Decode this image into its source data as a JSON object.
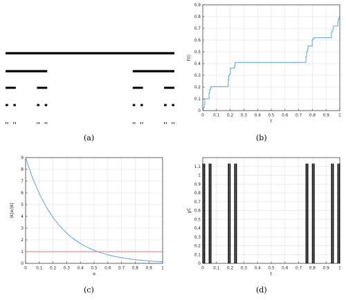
{
  "captions": {
    "a": "(a)",
    "b": "(b)",
    "c": "(c)",
    "d": "(d)"
  },
  "colors": {
    "axis": "#262626",
    "grid": "#e4e4e4",
    "curve": "#5aa4dc",
    "ref": "#e8776e",
    "bars": "#000000",
    "cantor": "#000000"
  },
  "chart_data": [
    {
      "panel": "a",
      "type": "other",
      "description_levels": [
        [
          [
            0,
            1
          ]
        ],
        [
          [
            0,
            0.2469
          ],
          [
            0.7531,
            1
          ]
        ],
        [
          [
            0,
            0.061
          ],
          [
            0.186,
            0.2469
          ],
          [
            0.7531,
            0.814
          ],
          [
            0.939,
            1
          ]
        ],
        [
          [
            0,
            0.015
          ],
          [
            0.046,
            0.061
          ],
          [
            0.186,
            0.201
          ],
          [
            0.232,
            0.2469
          ],
          [
            0.7531,
            0.768
          ],
          [
            0.799,
            0.814
          ],
          [
            0.939,
            0.954
          ],
          [
            0.985,
            1
          ]
        ],
        [
          [
            0,
            0.004
          ],
          [
            0.011,
            0.015
          ],
          [
            0.046,
            0.05
          ],
          [
            0.057,
            0.061
          ],
          [
            0.186,
            0.19
          ],
          [
            0.197,
            0.201
          ],
          [
            0.232,
            0.236
          ],
          [
            0.243,
            0.2469
          ],
          [
            0.7531,
            0.757
          ],
          [
            0.764,
            0.768
          ],
          [
            0.799,
            0.803
          ],
          [
            0.81,
            0.814
          ],
          [
            0.939,
            0.943
          ],
          [
            0.95,
            0.954
          ],
          [
            0.985,
            0.989
          ],
          [
            0.996,
            1
          ]
        ]
      ]
    },
    {
      "panel": "b",
      "type": "line",
      "xlabel": "t",
      "ylabel": "f(t)",
      "xlim": [
        0,
        1
      ],
      "ylim": [
        0,
        0.9
      ],
      "xticks": [
        "0",
        "0.1",
        "0.2",
        "0.3",
        "0.4",
        "0.5",
        "0.6",
        "0.7",
        "0.8",
        "0.9",
        "1"
      ],
      "yticks": [
        "0",
        "0.1",
        "0.2",
        "0.3",
        "0.4",
        "0.5",
        "0.6",
        "0.7",
        "0.8",
        "0.9"
      ],
      "series": [
        {
          "x": [
            0,
            0.004,
            0.004,
            0.011,
            0.011,
            0.015,
            0.015,
            0.046,
            0.046,
            0.05,
            0.05,
            0.057,
            0.057,
            0.061,
            0.061,
            0.186,
            0.186,
            0.19,
            0.19,
            0.197,
            0.197,
            0.201,
            0.201,
            0.232,
            0.232,
            0.236,
            0.236,
            0.243,
            0.243,
            0.247,
            0.247,
            0.753,
            0.753,
            0.757,
            0.757,
            0.764,
            0.764,
            0.768,
            0.768,
            0.799,
            0.799,
            0.803,
            0.803,
            0.81,
            0.81,
            0.814,
            0.814,
            0.939,
            0.939,
            0.943,
            0.943,
            0.95,
            0.95,
            0.954,
            0.954,
            0.985,
            0.985,
            0.989,
            0.989,
            0.996,
            0.996,
            1.0
          ],
          "y": [
            0,
            0.0,
            0.025,
            0.025,
            0.05,
            0.05,
            0.1,
            0.1,
            0.15,
            0.15,
            0.18,
            0.18,
            0.2,
            0.2,
            0.205,
            0.205,
            0.26,
            0.26,
            0.3,
            0.3,
            0.31,
            0.31,
            0.36,
            0.36,
            0.38,
            0.38,
            0.41,
            0.41,
            0.41,
            0.41,
            0.41,
            0.41,
            0.46,
            0.46,
            0.5,
            0.5,
            0.52,
            0.52,
            0.55,
            0.55,
            0.6,
            0.6,
            0.61,
            0.61,
            0.62,
            0.62,
            0.62,
            0.62,
            0.66,
            0.66,
            0.68,
            0.68,
            0.7,
            0.7,
            0.72,
            0.72,
            0.75,
            0.75,
            0.78,
            0.78,
            0.8,
            0.8
          ]
        }
      ]
    },
    {
      "panel": "c",
      "type": "line",
      "xlabel": "α",
      "ylabel": "|K|α/|K|",
      "xlim": [
        0,
        1
      ],
      "ylim": [
        0,
        9
      ],
      "xticks": [
        "0",
        "0.1",
        "0.2",
        "0.3",
        "0.4",
        "0.5",
        "0.6",
        "0.7",
        "0.8",
        "0.9",
        "1"
      ],
      "yticks": [
        "0",
        "1",
        "2",
        "3",
        "4",
        "5",
        "6",
        "7",
        "8",
        "9"
      ],
      "series": [
        {
          "x": [
            0.0,
            0.05,
            0.1,
            0.15,
            0.2,
            0.25,
            0.3,
            0.35,
            0.4,
            0.45,
            0.5,
            0.55,
            0.6,
            0.65,
            0.7,
            0.75,
            0.8,
            0.85,
            0.9,
            0.95,
            1.0
          ],
          "y": [
            9.0,
            7.3,
            5.93,
            4.81,
            3.9,
            3.17,
            2.57,
            2.08,
            1.69,
            1.37,
            1.11,
            0.9,
            0.73,
            0.59,
            0.48,
            0.39,
            0.32,
            0.26,
            0.21,
            0.17,
            0.14
          ]
        },
        {
          "x": [
            0,
            1
          ],
          "y": [
            1,
            1
          ]
        }
      ]
    },
    {
      "panel": "d",
      "type": "bar",
      "xlabel": "t",
      "ylabel": "χC",
      "xlim": [
        0,
        1
      ],
      "ylim": [
        0,
        1.2
      ],
      "xticks": [
        "0",
        "0.1",
        "0.2",
        "0.3",
        "0.4",
        "0.5",
        "0.6",
        "0.7",
        "0.8",
        "0.9",
        "1"
      ],
      "yticks": [
        "0",
        "0.1",
        "0.2",
        "0.3",
        "0.4",
        "0.5",
        "0.6",
        "0.7",
        "0.8",
        "0.9",
        "1",
        "1.1"
      ],
      "values": [
        1.13
      ],
      "bar_intervals": [
        [
          0.0,
          0.004
        ],
        [
          0.011,
          0.015
        ],
        [
          0.046,
          0.05
        ],
        [
          0.057,
          0.061
        ],
        [
          0.186,
          0.19
        ],
        [
          0.197,
          0.201
        ],
        [
          0.232,
          0.236
        ],
        [
          0.243,
          0.247
        ],
        [
          0.753,
          0.757
        ],
        [
          0.764,
          0.768
        ],
        [
          0.799,
          0.803
        ],
        [
          0.81,
          0.814
        ],
        [
          0.939,
          0.943
        ],
        [
          0.95,
          0.954
        ],
        [
          0.985,
          0.989
        ],
        [
          0.996,
          1.0
        ]
      ]
    }
  ]
}
